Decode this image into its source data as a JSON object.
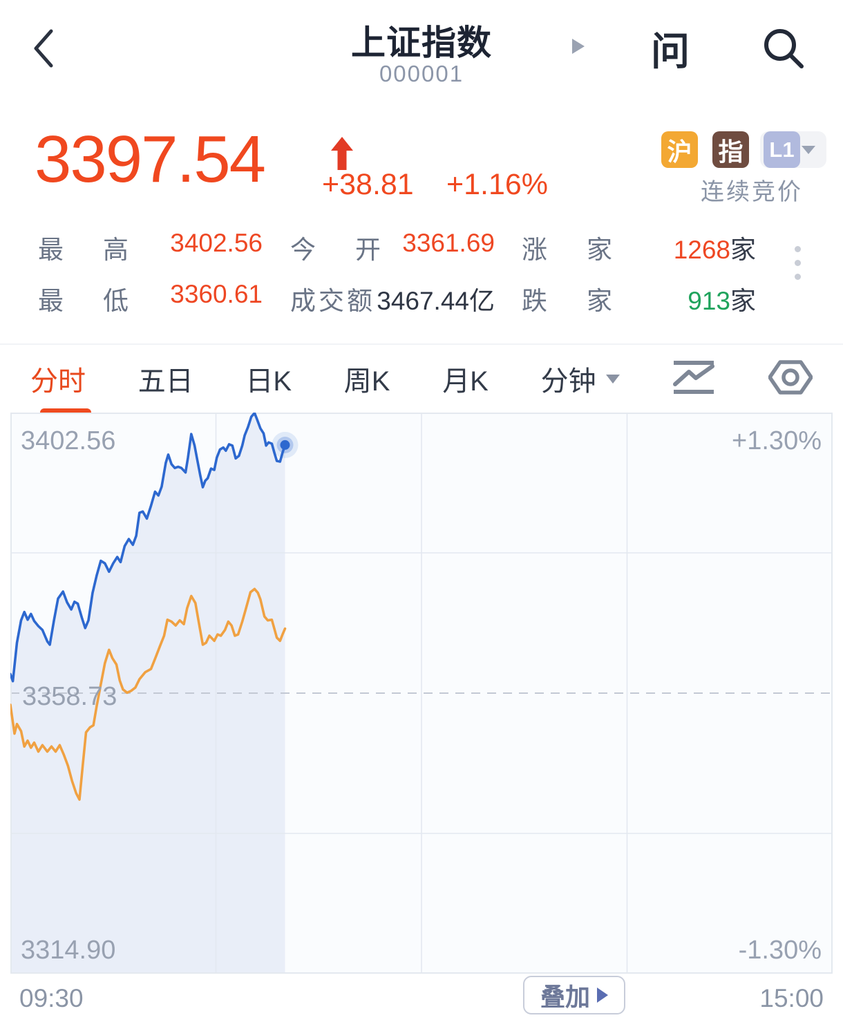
{
  "header": {
    "title": "上证指数",
    "code": "000001",
    "ask_icon_label": "问"
  },
  "quote": {
    "price": "3397.54",
    "change": "+38.81",
    "change_pct": "+1.16%",
    "session_status": "连续竞价",
    "badges": {
      "market": "沪",
      "type": "指",
      "level": "L1"
    }
  },
  "stats": {
    "rows": [
      [
        {
          "label": "最　高",
          "value": "3402.56"
        },
        {
          "label": "今　开",
          "value": "3361.69"
        },
        {
          "label": "涨　家",
          "value": "1268",
          "suffix": "家"
        }
      ],
      [
        {
          "label": "最　低",
          "value": "3360.61"
        },
        {
          "label": "成交额",
          "value": "3467.44亿"
        },
        {
          "label": "跌　家",
          "value": "913",
          "suffix": "家"
        }
      ]
    ]
  },
  "tabs": {
    "items": [
      "分时",
      "五日",
      "日K",
      "周K",
      "月K",
      "分钟"
    ]
  },
  "chart": {
    "labels": {
      "high": "3402.56",
      "mid": "3358.73",
      "low": "3314.90",
      "pct_high": "+1.30%",
      "pct_low": "-1.30%"
    },
    "overlay_button": "叠加",
    "time_start": "09:30",
    "time_end": "15:00"
  },
  "colors": {
    "up": "#ee4723",
    "down": "#1fa35c",
    "price_accent": "#f0481f"
  },
  "chart_data": {
    "type": "line",
    "x_range": [
      "09:30",
      "15:00"
    ],
    "ylim": [
      3314.9,
      3402.56
    ],
    "prev_close": 3358.73,
    "pct_range": [
      "+1.30%",
      "-1.30%"
    ],
    "grid": {
      "v_lines": [
        0.25,
        0.5,
        0.75
      ],
      "h_lines": [
        0.25,
        0.75
      ],
      "legend": "none"
    },
    "bg_color": "#fafcfe",
    "fill_color": "#e9eef8",
    "series": [
      {
        "name": "price",
        "color": "#2d68cf",
        "points": [
          [
            0.0,
            3361.7
          ],
          [
            0.003,
            3360.6
          ],
          [
            0.008,
            3366.6
          ],
          [
            0.013,
            3370.1
          ],
          [
            0.017,
            3371.4
          ],
          [
            0.021,
            3370.2
          ],
          [
            0.025,
            3371.1
          ],
          [
            0.029,
            3370.0
          ],
          [
            0.034,
            3369.2
          ],
          [
            0.039,
            3368.6
          ],
          [
            0.045,
            3366.8
          ],
          [
            0.048,
            3366.3
          ],
          [
            0.053,
            3370.1
          ],
          [
            0.058,
            3373.5
          ],
          [
            0.064,
            3374.6
          ],
          [
            0.069,
            3372.9
          ],
          [
            0.074,
            3371.8
          ],
          [
            0.078,
            3373.0
          ],
          [
            0.082,
            3372.7
          ],
          [
            0.087,
            3370.5
          ],
          [
            0.091,
            3368.9
          ],
          [
            0.095,
            3370.1
          ],
          [
            0.1,
            3374.4
          ],
          [
            0.105,
            3377.1
          ],
          [
            0.11,
            3379.4
          ],
          [
            0.115,
            3379.0
          ],
          [
            0.12,
            3377.7
          ],
          [
            0.125,
            3379.0
          ],
          [
            0.13,
            3380.0
          ],
          [
            0.134,
            3379.2
          ],
          [
            0.139,
            3381.7
          ],
          [
            0.144,
            3382.8
          ],
          [
            0.149,
            3381.9
          ],
          [
            0.153,
            3383.3
          ],
          [
            0.157,
            3386.9
          ],
          [
            0.161,
            3387.1
          ],
          [
            0.166,
            3386.0
          ],
          [
            0.171,
            3388.0
          ],
          [
            0.176,
            3390.2
          ],
          [
            0.18,
            3389.6
          ],
          [
            0.184,
            3391.0
          ],
          [
            0.189,
            3394.7
          ],
          [
            0.192,
            3396.0
          ],
          [
            0.196,
            3394.5
          ],
          [
            0.2,
            3393.9
          ],
          [
            0.204,
            3394.1
          ],
          [
            0.208,
            3393.9
          ],
          [
            0.213,
            3393.2
          ],
          [
            0.216,
            3395.5
          ],
          [
            0.22,
            3399.2
          ],
          [
            0.224,
            3397.4
          ],
          [
            0.227,
            3395.4
          ],
          [
            0.231,
            3392.7
          ],
          [
            0.234,
            3390.9
          ],
          [
            0.237,
            3391.9
          ],
          [
            0.24,
            3392.3
          ],
          [
            0.244,
            3393.8
          ],
          [
            0.248,
            3393.6
          ],
          [
            0.251,
            3395.5
          ],
          [
            0.255,
            3396.8
          ],
          [
            0.259,
            3397.1
          ],
          [
            0.262,
            3396.6
          ],
          [
            0.266,
            3397.6
          ],
          [
            0.27,
            3397.4
          ],
          [
            0.274,
            3395.4
          ],
          [
            0.278,
            3395.8
          ],
          [
            0.282,
            3397.4
          ],
          [
            0.285,
            3399.0
          ],
          [
            0.289,
            3400.3
          ],
          [
            0.293,
            3401.9
          ],
          [
            0.297,
            3402.5
          ],
          [
            0.3,
            3401.5
          ],
          [
            0.304,
            3400.1
          ],
          [
            0.308,
            3399.3
          ],
          [
            0.311,
            3397.4
          ],
          [
            0.314,
            3397.9
          ],
          [
            0.318,
            3397.7
          ],
          [
            0.321,
            3396.3
          ],
          [
            0.324,
            3395.0
          ],
          [
            0.328,
            3394.9
          ],
          [
            0.331,
            3396.3
          ],
          [
            0.334,
            3397.5
          ]
        ]
      },
      {
        "name": "average",
        "color": "#f0a142",
        "points": [
          [
            0.0,
            3356.9
          ],
          [
            0.003,
            3354.2
          ],
          [
            0.005,
            3352.4
          ],
          [
            0.008,
            3353.9
          ],
          [
            0.013,
            3352.8
          ],
          [
            0.017,
            3350.4
          ],
          [
            0.021,
            3351.3
          ],
          [
            0.025,
            3350.2
          ],
          [
            0.029,
            3351.0
          ],
          [
            0.034,
            3349.6
          ],
          [
            0.039,
            3350.6
          ],
          [
            0.045,
            3349.6
          ],
          [
            0.05,
            3350.4
          ],
          [
            0.055,
            3349.6
          ],
          [
            0.06,
            3350.6
          ],
          [
            0.065,
            3349.1
          ],
          [
            0.07,
            3347.4
          ],
          [
            0.075,
            3345.0
          ],
          [
            0.08,
            3343.1
          ],
          [
            0.084,
            3342.1
          ],
          [
            0.088,
            3347.4
          ],
          [
            0.092,
            3352.6
          ],
          [
            0.097,
            3353.4
          ],
          [
            0.101,
            3353.7
          ],
          [
            0.105,
            3356.7
          ],
          [
            0.11,
            3360.1
          ],
          [
            0.115,
            3363.4
          ],
          [
            0.12,
            3365.5
          ],
          [
            0.124,
            3364.2
          ],
          [
            0.129,
            3363.2
          ],
          [
            0.133,
            3360.7
          ],
          [
            0.137,
            3359.3
          ],
          [
            0.142,
            3358.8
          ],
          [
            0.147,
            3359.1
          ],
          [
            0.152,
            3359.6
          ],
          [
            0.157,
            3360.9
          ],
          [
            0.164,
            3362.0
          ],
          [
            0.171,
            3362.5
          ],
          [
            0.176,
            3364.1
          ],
          [
            0.182,
            3366.1
          ],
          [
            0.187,
            3367.7
          ],
          [
            0.191,
            3370.2
          ],
          [
            0.196,
            3369.9
          ],
          [
            0.201,
            3369.3
          ],
          [
            0.206,
            3370.1
          ],
          [
            0.211,
            3369.5
          ],
          [
            0.215,
            3372.0
          ],
          [
            0.22,
            3373.9
          ],
          [
            0.225,
            3372.8
          ],
          [
            0.229,
            3369.9
          ],
          [
            0.234,
            3366.3
          ],
          [
            0.238,
            3366.6
          ],
          [
            0.242,
            3367.7
          ],
          [
            0.248,
            3366.9
          ],
          [
            0.252,
            3367.9
          ],
          [
            0.256,
            3367.7
          ],
          [
            0.261,
            3368.6
          ],
          [
            0.265,
            3369.9
          ],
          [
            0.269,
            3369.3
          ],
          [
            0.273,
            3367.7
          ],
          [
            0.277,
            3367.9
          ],
          [
            0.282,
            3369.9
          ],
          [
            0.286,
            3371.7
          ],
          [
            0.292,
            3374.5
          ],
          [
            0.297,
            3375.0
          ],
          [
            0.301,
            3374.4
          ],
          [
            0.304,
            3373.4
          ],
          [
            0.309,
            3370.7
          ],
          [
            0.313,
            3370.1
          ],
          [
            0.318,
            3370.2
          ],
          [
            0.321,
            3368.8
          ],
          [
            0.324,
            3367.4
          ],
          [
            0.328,
            3366.9
          ],
          [
            0.331,
            3367.9
          ],
          [
            0.334,
            3368.8
          ]
        ]
      }
    ]
  }
}
